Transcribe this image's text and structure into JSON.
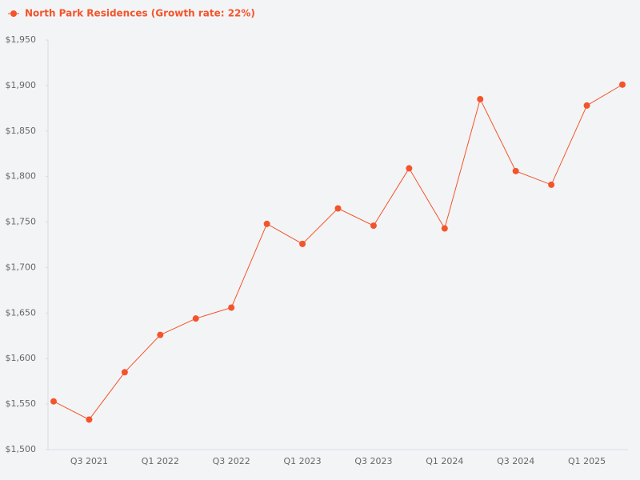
{
  "chart_data": {
    "type": "line",
    "categories": [
      null,
      "Q3 2021",
      null,
      "Q1 2022",
      null,
      "Q3 2022",
      null,
      "Q1 2023",
      null,
      "Q3 2023",
      null,
      "Q1 2024",
      null,
      "Q3 2024",
      null,
      "Q1 2025",
      null
    ],
    "series": [
      {
        "name": "North Park Residences (Growth rate: 22%)",
        "color": "#f4542b",
        "values": [
          1553,
          1533,
          1585,
          1626,
          1644,
          1656,
          1748,
          1726,
          1765,
          1746,
          1809,
          1743,
          1885,
          1806,
          1791,
          1878,
          1901
        ]
      }
    ],
    "ylim": [
      1500,
      1950
    ],
    "yticks": [
      {
        "value": 1500,
        "label": "$1,500"
      },
      {
        "value": 1550,
        "label": "$1,550"
      },
      {
        "value": 1600,
        "label": "$1,600"
      },
      {
        "value": 1650,
        "label": "$1,650"
      },
      {
        "value": 1700,
        "label": "$1,700"
      },
      {
        "value": 1750,
        "label": "$1,750"
      },
      {
        "value": 1800,
        "label": "$1,800"
      },
      {
        "value": 1850,
        "label": "$1,850"
      },
      {
        "value": 1900,
        "label": "$1,900"
      },
      {
        "value": 1950,
        "label": "$1,950"
      }
    ],
    "grid": false,
    "legend": "top-left"
  }
}
